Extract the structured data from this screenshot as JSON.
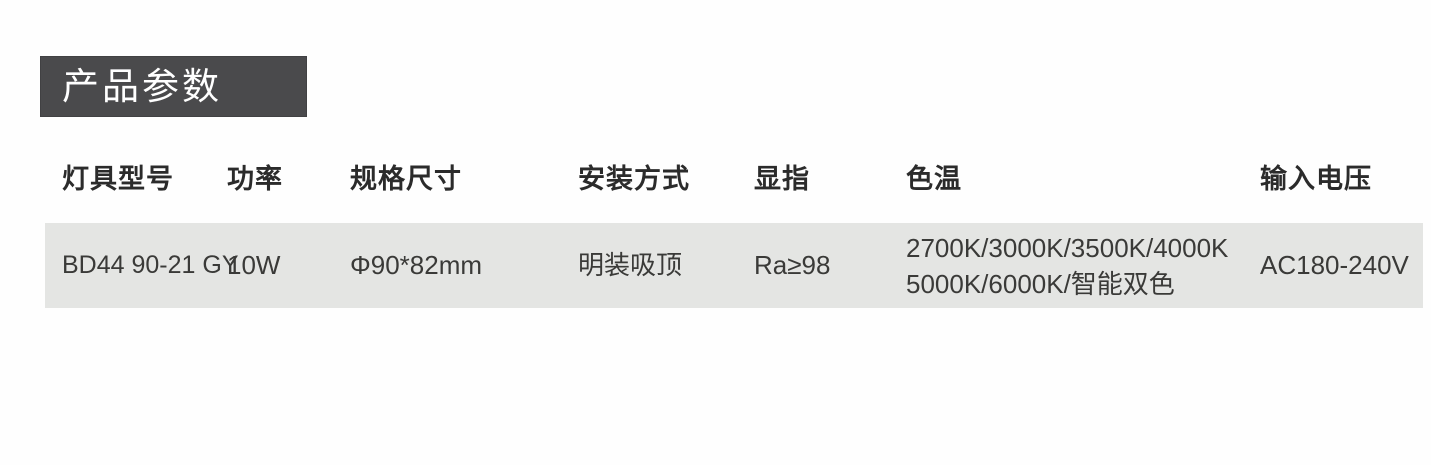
{
  "page": {
    "background_color": "#fefefe"
  },
  "section": {
    "title": "产品参数",
    "badge_bg_color": "#4a4a4c",
    "badge_text_color": "#ffffff"
  },
  "table": {
    "row_bg_color": "#e4e5e3",
    "header_text_color": "#2b2b2b",
    "data_text_color": "#3a3a38",
    "columns": [
      {
        "key": "model",
        "label": "灯具型号"
      },
      {
        "key": "power",
        "label": "功率"
      },
      {
        "key": "size",
        "label": "规格尺寸"
      },
      {
        "key": "install",
        "label": "安装方式"
      },
      {
        "key": "cri",
        "label": "显指"
      },
      {
        "key": "cct",
        "label": "色温"
      },
      {
        "key": "voltage",
        "label": "输入电压"
      }
    ],
    "rows": [
      {
        "model": "BD44 90-21 GY",
        "power": "10W",
        "size": "Φ90*82mm",
        "install": "明装吸顶",
        "cri": "Ra≥98",
        "cct_line1": "2700K/3000K/3500K/4000K",
        "cct_line2": "5000K/6000K/智能双色",
        "voltage": "AC180-240V"
      }
    ]
  }
}
